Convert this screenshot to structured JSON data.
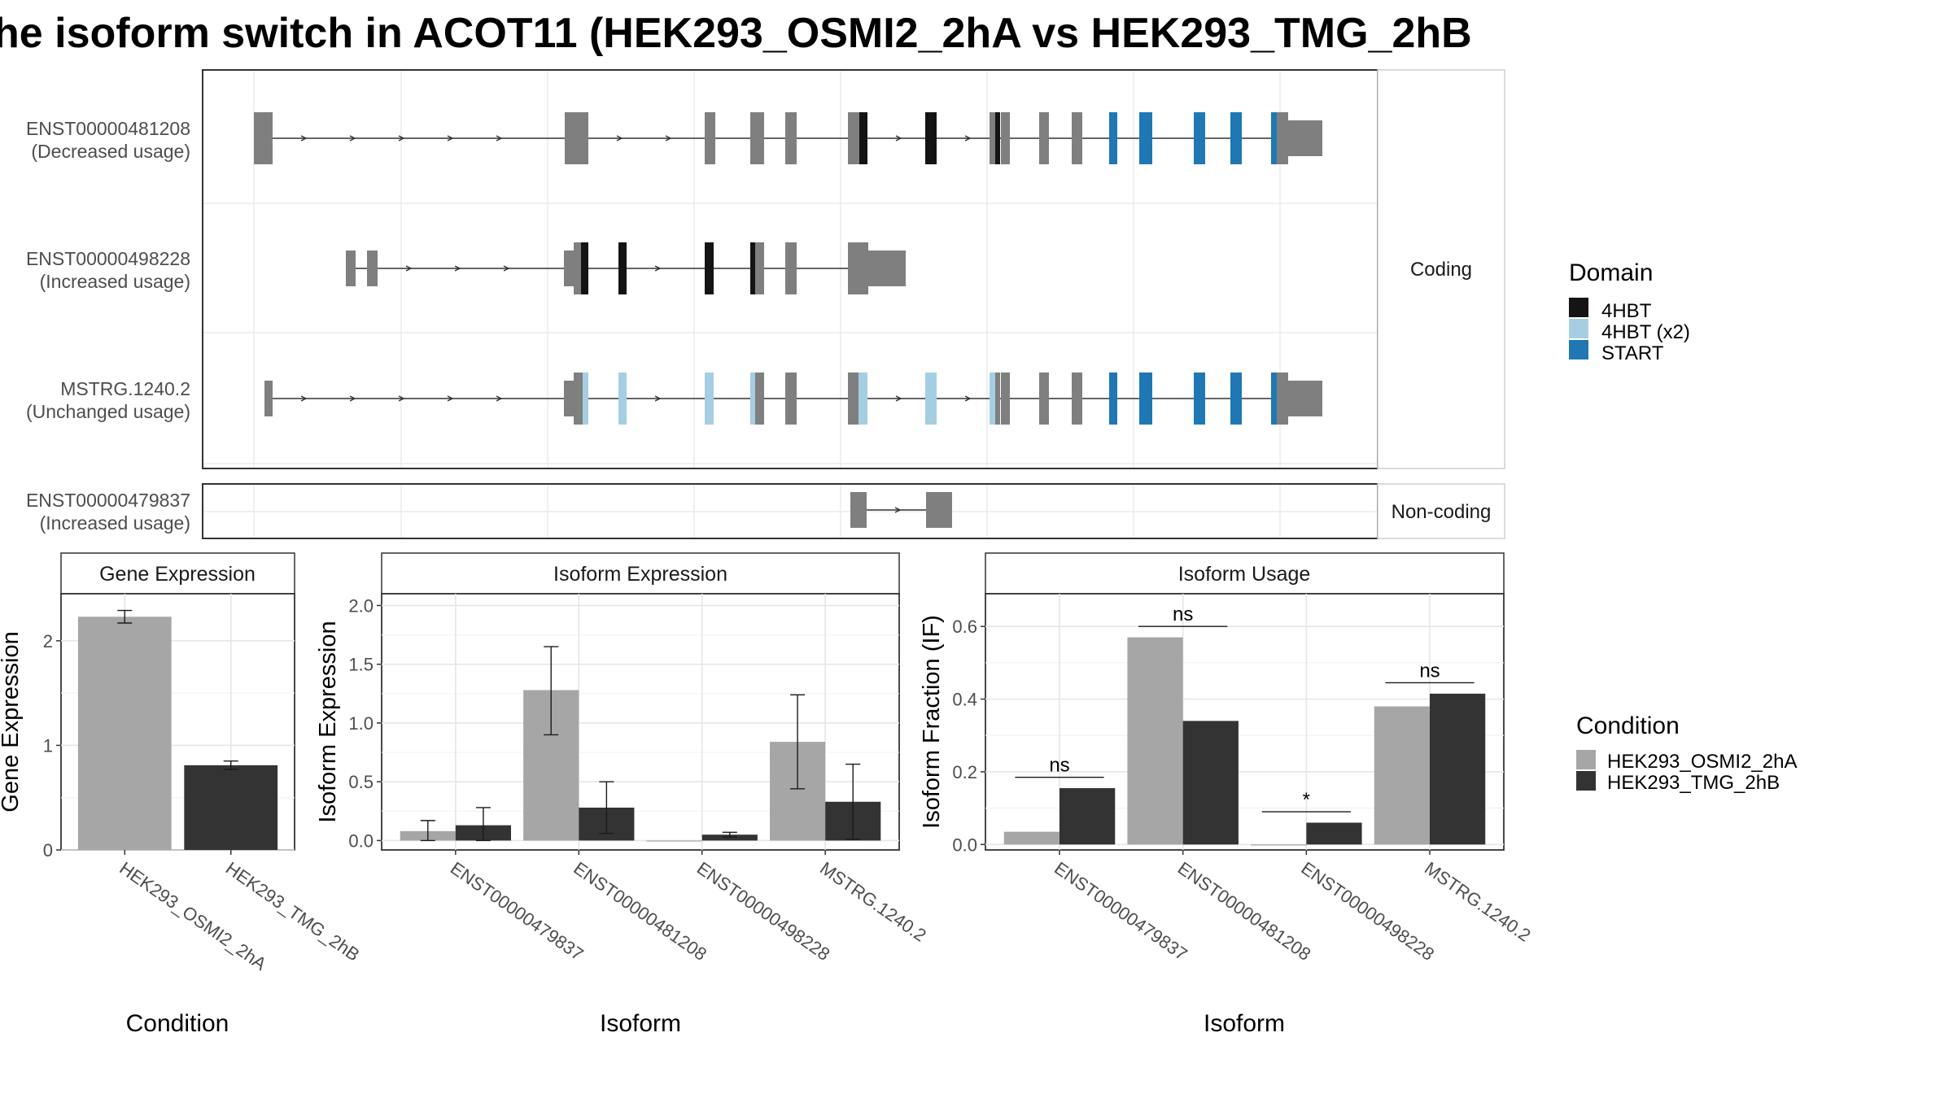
{
  "title": "he isoform switch in ACOT11 (HEK293_OSMI2_2hA vs HEK293_TMG_2hB",
  "colors": {
    "exon": "#7f7f7f",
    "d_4HBT": "#141414",
    "d_4HBT_x2": "#a6cee3",
    "d_START": "#1f78b4",
    "cond_A": "#a6a6a6",
    "cond_B": "#333333"
  },
  "structure": {
    "facets": [
      "Coding",
      "Non-coding"
    ],
    "transcripts": [
      {
        "id": "ENST00000481208",
        "usage": "(Decreased usage)",
        "facet": "Coding"
      },
      {
        "id": "ENST00000498228",
        "usage": "(Increased usage)",
        "facet": "Coding"
      },
      {
        "id": "MSTRG.1240.2",
        "usage": "(Unchanged usage)",
        "facet": "Coding"
      },
      {
        "id": "ENST00000479837",
        "usage": "(Increased usage)",
        "facet": "Non-coding"
      }
    ]
  },
  "domain_legend": {
    "title": "Domain",
    "items": [
      {
        "label": "4HBT",
        "color": "#141414"
      },
      {
        "label": "4HBT (x2)",
        "color": "#a6cee3"
      },
      {
        "label": "START",
        "color": "#1f78b4"
      }
    ]
  },
  "condition_legend": {
    "title": "Condition",
    "items": [
      {
        "label": "HEK293_OSMI2_2hA",
        "color": "#a6a6a6"
      },
      {
        "label": "HEK293_TMG_2hB",
        "color": "#333333"
      }
    ]
  },
  "chart_data": [
    {
      "type": "bar",
      "panel": "Gene Expression",
      "categories": [
        "HEK293_OSMI2_2hA",
        "HEK293_TMG_2hB"
      ],
      "values": [
        2.23,
        0.81
      ],
      "err_low": [
        2.17,
        0.77
      ],
      "err_high": [
        2.29,
        0.85
      ],
      "xlabel": "Condition",
      "ylabel": "Gene Expression",
      "ylim": [
        0,
        2.45
      ],
      "yticks": [
        0,
        1,
        2
      ]
    },
    {
      "type": "bar",
      "panel": "Isoform Expression",
      "categories": [
        "ENST00000479837",
        "ENST00000481208",
        "ENST00000498228",
        "MSTRG.1240.2"
      ],
      "series": [
        {
          "name": "HEK293_OSMI2_2hA",
          "values": [
            0.08,
            1.28,
            0.0,
            0.84
          ],
          "err_low": [
            0.0,
            0.9,
            0.0,
            0.44
          ],
          "err_high": [
            0.17,
            1.65,
            0.0,
            1.24
          ]
        },
        {
          "name": "HEK293_TMG_2hB",
          "values": [
            0.13,
            0.28,
            0.05,
            0.33
          ],
          "err_low": [
            0.0,
            0.06,
            0.03,
            0.01
          ],
          "err_high": [
            0.28,
            0.5,
            0.07,
            0.65
          ]
        }
      ],
      "xlabel": "Isoform",
      "ylabel": "Isoform Expression",
      "ylim": [
        -0.08,
        2.1
      ],
      "yticks": [
        0.0,
        0.5,
        1.0,
        1.5,
        2.0
      ],
      "ytick_labels": [
        "0.0",
        "0.5",
        "1.0",
        "1.5",
        "2.0"
      ]
    },
    {
      "type": "bar",
      "panel": "Isoform Usage",
      "categories": [
        "ENST00000479837",
        "ENST00000481208",
        "ENST00000498228",
        "MSTRG.1240.2"
      ],
      "series": [
        {
          "name": "HEK293_OSMI2_2hA",
          "values": [
            0.035,
            0.57,
            0.0,
            0.38
          ]
        },
        {
          "name": "HEK293_TMG_2hB",
          "values": [
            0.155,
            0.34,
            0.06,
            0.415
          ]
        }
      ],
      "significance": [
        "ns",
        "ns",
        "*",
        "ns"
      ],
      "sig_y": [
        0.185,
        0.6,
        0.09,
        0.445
      ],
      "xlabel": "Isoform",
      "ylabel": "Isoform Fraction (IF)",
      "ylim": [
        -0.015,
        0.69
      ],
      "yticks": [
        0.0,
        0.2,
        0.4,
        0.6
      ],
      "ytick_labels": [
        "0.0",
        "0.2",
        "0.4",
        "0.6"
      ]
    }
  ]
}
